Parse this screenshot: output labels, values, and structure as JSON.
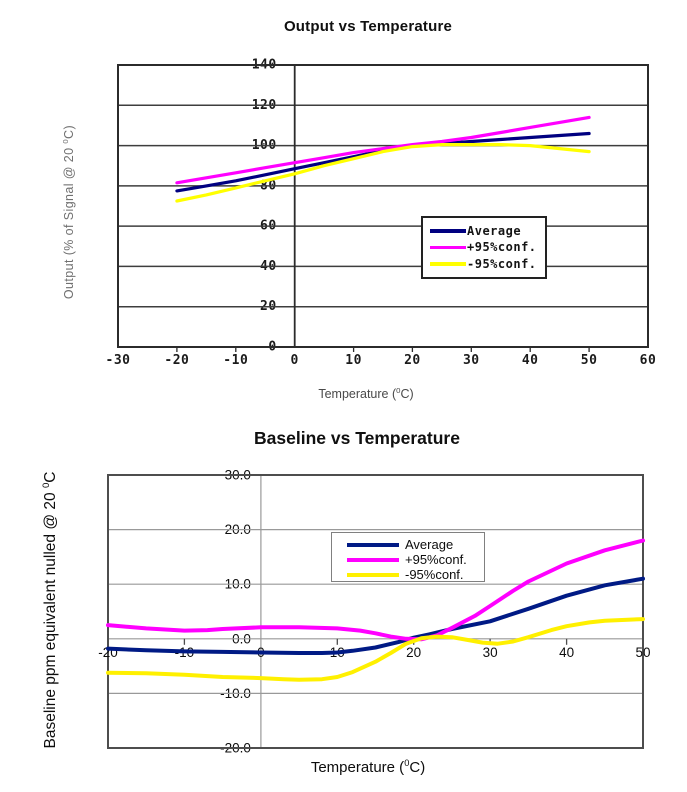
{
  "page": {
    "background": "#ffffff"
  },
  "chart_data": [
    {
      "type": "line",
      "title": "Output vs Temperature",
      "xlabel": {
        "pre": "Temperature (",
        "sup": "0",
        "post": "C)"
      },
      "ylabel": {
        "pre": "Output (% of Signal @ 20 ",
        "sup": "0",
        "post": "C)"
      },
      "xlim": [
        -30,
        60
      ],
      "ylim": [
        0,
        140
      ],
      "grid": "horizontal",
      "legend_position": "center-right",
      "xticks": {
        "values": [
          -30,
          -20,
          -10,
          0,
          10,
          20,
          30,
          40,
          50,
          60
        ],
        "labels": [
          "-30",
          "-20",
          "-10",
          "0",
          "10",
          "20",
          "30",
          "40",
          "50",
          "60"
        ]
      },
      "yticks": {
        "values": [
          0,
          20,
          40,
          60,
          80,
          100,
          120,
          140
        ],
        "labels": [
          "0",
          "20",
          "40",
          "60",
          "80",
          "100",
          "120",
          "140"
        ]
      },
      "series": [
        {
          "name": "Average",
          "color": "#000080",
          "x": [
            -20,
            -15,
            -10,
            -5,
            0,
            5,
            10,
            15,
            20,
            25,
            30,
            35,
            40,
            45,
            50
          ],
          "y": [
            77.5,
            80,
            82.5,
            85.5,
            88.5,
            91.5,
            94.5,
            97.5,
            100,
            101,
            102,
            103,
            104,
            105,
            106
          ]
        },
        {
          "name": "+95%conf.",
          "color": "#FF00FF",
          "x": [
            -20,
            -15,
            -10,
            -5,
            0,
            5,
            10,
            15,
            20,
            25,
            30,
            35,
            40,
            45,
            50
          ],
          "y": [
            81.5,
            84,
            86.5,
            89,
            91.5,
            94,
            96.5,
            98.5,
            100.5,
            102,
            104,
            106.5,
            109,
            111.5,
            114
          ]
        },
        {
          "name": "-95%conf.",
          "color": "#FFFF00",
          "x": [
            -20,
            -15,
            -10,
            -5,
            0,
            5,
            10,
            15,
            20,
            25,
            30,
            35,
            40,
            45,
            50
          ],
          "y": [
            72.5,
            75.5,
            79,
            82.5,
            86,
            90,
            93.5,
            97,
            99.5,
            100.5,
            100.5,
            100.5,
            100,
            98.5,
            97
          ]
        }
      ]
    },
    {
      "type": "line",
      "title": "Baseline vs Temperature",
      "xlabel": {
        "pre": "Temperature (",
        "sup": "0",
        "post": "C)"
      },
      "ylabel": {
        "pre": "Baseline ppm equivalent nulled @ 20 ",
        "sup": "0",
        "post": "C"
      },
      "xlim": [
        -20,
        50
      ],
      "ylim": [
        -20,
        30
      ],
      "grid": "horizontal",
      "legend_position": "top-center",
      "xticks": {
        "values": [
          -20,
          -10,
          0,
          10,
          20,
          30,
          40,
          50
        ],
        "labels": [
          "-20",
          "-10",
          "0",
          "10",
          "20",
          "30",
          "40",
          "50"
        ]
      },
      "yticks": {
        "values": [
          -20,
          -10,
          0,
          10,
          20,
          30
        ],
        "labels": [
          "-20.0",
          "-10.0",
          "0.0",
          "10.0",
          "20.0",
          "30.0"
        ]
      },
      "series": [
        {
          "name": "Average",
          "color": "#001a85",
          "x": [
            -20,
            -15,
            -10,
            -5,
            0,
            5,
            8,
            10,
            12,
            15,
            18,
            20,
            22,
            25,
            30,
            35,
            40,
            45,
            50
          ],
          "y": [
            -1.8,
            -2.1,
            -2.3,
            -2.4,
            -2.5,
            -2.6,
            -2.6,
            -2.5,
            -2.2,
            -1.6,
            -0.6,
            0.2,
            0.8,
            1.8,
            3.2,
            5.5,
            7.9,
            9.8,
            11
          ]
        },
        {
          "name": "+95%conf.",
          "color": "#FF00FF",
          "x": [
            -20,
            -15,
            -10,
            -7,
            -5,
            0,
            5,
            10,
            13,
            15,
            17,
            19,
            21,
            23,
            25,
            28,
            30,
            33,
            35,
            40,
            45,
            50
          ],
          "y": [
            2.5,
            1.9,
            1.5,
            1.6,
            1.8,
            2.1,
            2.1,
            1.9,
            1.5,
            1.0,
            0.4,
            0.0,
            -0.1,
            0.6,
            2.0,
            4.2,
            6.0,
            8.8,
            10.5,
            13.8,
            16.2,
            18
          ]
        },
        {
          "name": "-95%conf.",
          "color": "#FFF000",
          "x": [
            -20,
            -15,
            -10,
            -5,
            0,
            3,
            5,
            8,
            10,
            12,
            15,
            17,
            19,
            21,
            23,
            25,
            27,
            29,
            31,
            33,
            35,
            38,
            40,
            43,
            45,
            48,
            50
          ],
          "y": [
            -6.2,
            -6.3,
            -6.6,
            -7.0,
            -7.2,
            -7.4,
            -7.5,
            -7.4,
            -7.0,
            -6.1,
            -4.2,
            -2.6,
            -0.9,
            0.1,
            0.4,
            0.3,
            -0.2,
            -0.7,
            -0.9,
            -0.5,
            0.3,
            1.6,
            2.3,
            3.0,
            3.3,
            3.5,
            3.6
          ]
        }
      ]
    }
  ]
}
